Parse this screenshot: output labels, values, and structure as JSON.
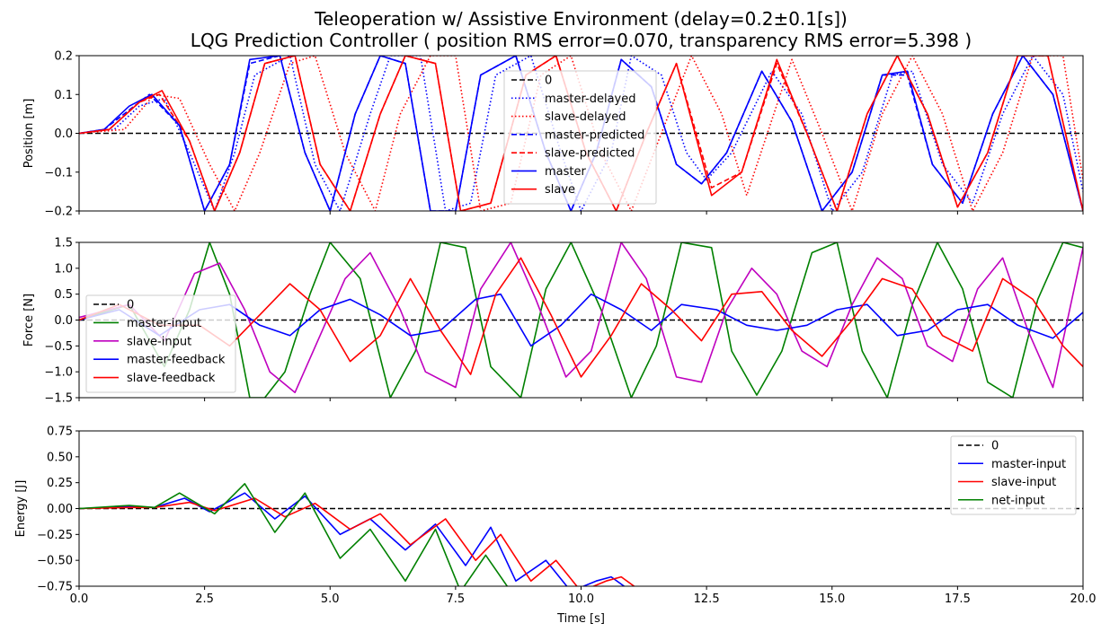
{
  "figure": {
    "title_line1": "Teleoperation w/ Assistive Environment (delay=0.2±0.1[s])",
    "title_line2": "LQG Prediction Controller ( position RMS error=0.070, transparency RMS error=5.398 )"
  },
  "chart_data": [
    {
      "type": "line",
      "ylabel": "Position [m]",
      "xlim": [
        0,
        20
      ],
      "ylim": [
        -0.2,
        0.2
      ],
      "yticks": [
        "0.2",
        "0.1",
        "0.0",
        "−0.1",
        "−0.2"
      ],
      "ytick_values": [
        0.2,
        0.1,
        0.0,
        -0.1,
        -0.2
      ],
      "legend_position": "top-center",
      "series": [
        {
          "name": "0",
          "color": "#000000",
          "style": "dashed",
          "x": [
            0,
            20
          ],
          "y": [
            0,
            0
          ]
        },
        {
          "name": "master-delayed",
          "color": "#0000ff",
          "style": "dotted",
          "x": [
            0,
            0.7,
            1.2,
            1.7,
            2.2,
            2.7,
            3.1,
            3.5,
            4.2,
            4.7,
            5.2,
            5.8,
            6.2,
            6.8,
            7.3,
            7.8,
            8.3,
            9.0,
            9.6,
            10.0,
            10.6,
            11.0,
            11.6,
            12.1,
            12.5,
            13.0,
            13.8,
            14.4,
            15.0,
            15.6,
            16.2,
            16.6,
            17.2,
            17.8,
            18.4,
            19.0,
            19.6,
            20.0
          ],
          "y": [
            0,
            0.01,
            0.07,
            0.09,
            -0.05,
            -0.2,
            -0.05,
            0.15,
            0.2,
            -0.08,
            -0.2,
            0.05,
            0.2,
            0.2,
            -0.2,
            -0.18,
            0.15,
            0.2,
            -0.05,
            -0.2,
            -0.05,
            0.2,
            0.15,
            -0.05,
            -0.12,
            -0.05,
            0.16,
            0.05,
            -0.2,
            -0.1,
            0.15,
            0.16,
            -0.08,
            -0.18,
            0.05,
            0.2,
            0.1,
            -0.15
          ]
        },
        {
          "name": "slave-delayed",
          "color": "#ff0000",
          "style": "dotted",
          "x": [
            0,
            0.9,
            1.5,
            2.0,
            2.6,
            3.1,
            3.6,
            4.2,
            4.7,
            5.3,
            5.9,
            6.4,
            7.0,
            7.5,
            8.0,
            8.6,
            9.2,
            9.8,
            10.4,
            11.0,
            11.6,
            12.2,
            12.8,
            13.3,
            14.2,
            14.8,
            15.4,
            16.0,
            16.6,
            17.2,
            17.8,
            18.4,
            19.0,
            19.6,
            20.0
          ],
          "y": [
            0,
            0.01,
            0.1,
            0.09,
            -0.08,
            -0.2,
            -0.05,
            0.18,
            0.2,
            -0.05,
            -0.2,
            0.05,
            0.2,
            0.2,
            -0.2,
            -0.18,
            0.15,
            0.2,
            -0.05,
            -0.2,
            0.0,
            0.2,
            0.05,
            -0.16,
            0.19,
            0.0,
            -0.2,
            0.05,
            0.2,
            0.05,
            -0.2,
            -0.05,
            0.2,
            0.2,
            -0.12
          ]
        },
        {
          "name": "master-predicted",
          "color": "#0000ff",
          "style": "dashed",
          "x": [
            0,
            0.5,
            1.0,
            1.4,
            2.0,
            2.5,
            3.0,
            3.4,
            4.0,
            4.5,
            5.0,
            5.5,
            6.0,
            6.5,
            7.0,
            7.5,
            8.0,
            8.7,
            9.3,
            9.8,
            10.3,
            10.8,
            11.4,
            11.9,
            12.4,
            12.9,
            13.6,
            14.2,
            14.8,
            15.4,
            16.0,
            16.5,
            17.0,
            17.6,
            18.2,
            18.8,
            19.4,
            20.0
          ],
          "y": [
            0,
            0.01,
            0.06,
            0.1,
            0.02,
            -0.2,
            -0.08,
            0.18,
            0.2,
            -0.05,
            -0.2,
            0.05,
            0.2,
            0.18,
            -0.2,
            -0.2,
            0.15,
            0.2,
            -0.05,
            -0.2,
            -0.05,
            0.19,
            0.12,
            -0.08,
            -0.13,
            -0.05,
            0.16,
            0.03,
            -0.2,
            -0.1,
            0.15,
            0.15,
            -0.08,
            -0.18,
            0.05,
            0.2,
            0.1,
            -0.2
          ]
        },
        {
          "name": "slave-predicted",
          "color": "#ff0000",
          "style": "dashed",
          "x": [
            0,
            0.6,
            1.2,
            1.6,
            2.2,
            2.7,
            3.2,
            3.7,
            4.3,
            4.8,
            5.4,
            6.0,
            6.5,
            7.1,
            7.6,
            8.2,
            8.9,
            9.5,
            10.1,
            10.7,
            11.3,
            11.9,
            12.6,
            13.2,
            13.9,
            14.5,
            15.1,
            15.7,
            16.3,
            16.9,
            17.5,
            18.1,
            18.7,
            19.3,
            20.0
          ],
          "y": [
            0,
            0.01,
            0.08,
            0.1,
            -0.02,
            -0.2,
            -0.05,
            0.18,
            0.2,
            -0.08,
            -0.2,
            0.05,
            0.2,
            0.18,
            -0.2,
            -0.18,
            0.15,
            0.2,
            -0.05,
            -0.2,
            0.0,
            0.18,
            -0.14,
            -0.1,
            0.18,
            0.0,
            -0.2,
            0.05,
            0.2,
            0.05,
            -0.19,
            -0.05,
            0.2,
            0.2,
            -0.2
          ]
        },
        {
          "name": "master",
          "color": "#0000ff",
          "style": "solid",
          "x": [
            0,
            0.5,
            1.0,
            1.45,
            2.0,
            2.5,
            3.0,
            3.4,
            4.0,
            4.5,
            5.0,
            5.5,
            6.0,
            6.5,
            7.0,
            7.5,
            8.0,
            8.7,
            9.3,
            9.8,
            10.3,
            10.8,
            11.4,
            11.9,
            12.4,
            12.9,
            13.6,
            14.2,
            14.8,
            15.4,
            16.0,
            16.5,
            17.0,
            17.6,
            18.2,
            18.8,
            19.4,
            20.0
          ],
          "y": [
            0,
            0.01,
            0.07,
            0.1,
            0.02,
            -0.2,
            -0.08,
            0.19,
            0.2,
            -0.05,
            -0.2,
            0.05,
            0.2,
            0.18,
            -0.2,
            -0.2,
            0.15,
            0.2,
            -0.05,
            -0.2,
            -0.05,
            0.19,
            0.12,
            -0.08,
            -0.13,
            -0.05,
            0.16,
            0.03,
            -0.2,
            -0.1,
            0.15,
            0.16,
            -0.08,
            -0.18,
            0.05,
            0.2,
            0.1,
            -0.2
          ]
        },
        {
          "name": "slave",
          "color": "#ff0000",
          "style": "solid",
          "x": [
            0,
            0.6,
            1.2,
            1.65,
            2.2,
            2.7,
            3.2,
            3.7,
            4.3,
            4.8,
            5.4,
            6.0,
            6.5,
            7.1,
            7.6,
            8.2,
            8.9,
            9.5,
            10.1,
            10.7,
            11.3,
            11.9,
            12.6,
            13.2,
            13.9,
            14.5,
            15.1,
            15.7,
            16.3,
            16.9,
            17.5,
            18.1,
            18.7,
            19.3,
            20.0
          ],
          "y": [
            0,
            0.01,
            0.08,
            0.11,
            -0.02,
            -0.2,
            -0.05,
            0.18,
            0.2,
            -0.08,
            -0.2,
            0.05,
            0.2,
            0.18,
            -0.2,
            -0.18,
            0.15,
            0.2,
            -0.05,
            -0.2,
            0.0,
            0.18,
            -0.16,
            -0.1,
            0.19,
            0.0,
            -0.2,
            0.05,
            0.2,
            0.05,
            -0.19,
            -0.05,
            0.2,
            0.2,
            -0.2
          ]
        }
      ]
    },
    {
      "type": "line",
      "ylabel": "Force [N]",
      "xlim": [
        0,
        20
      ],
      "ylim": [
        -1.5,
        1.5
      ],
      "yticks": [
        "1.5",
        "1.0",
        "0.5",
        "0.0",
        "−0.5",
        "−1.0",
        "−1.5"
      ],
      "ytick_values": [
        1.5,
        1.0,
        0.5,
        0.0,
        -0.5,
        -1.0,
        -1.5
      ],
      "legend_position": "center-left",
      "series": [
        {
          "name": "0",
          "color": "#000000",
          "style": "dashed",
          "x": [
            0,
            20
          ],
          "y": [
            0,
            0
          ]
        },
        {
          "name": "master-input",
          "color": "#008000",
          "style": "solid",
          "x": [
            0,
            1.0,
            1.7,
            2.2,
            2.6,
            3.0,
            3.4,
            3.7,
            4.1,
            4.6,
            5.0,
            5.6,
            6.2,
            6.7,
            7.2,
            7.7,
            8.2,
            8.8,
            9.3,
            9.8,
            10.4,
            11.0,
            11.5,
            12.0,
            12.6,
            13.0,
            13.5,
            14.0,
            14.6,
            15.1,
            15.6,
            16.1,
            16.6,
            17.1,
            17.6,
            18.1,
            18.6,
            19.1,
            19.6,
            20.0
          ],
          "y": [
            0,
            0.3,
            -0.9,
            0.2,
            1.5,
            0.5,
            -1.5,
            -1.5,
            -1.0,
            0.5,
            1.5,
            0.8,
            -1.5,
            -0.6,
            1.5,
            1.4,
            -0.9,
            -1.5,
            0.6,
            1.5,
            0.2,
            -1.5,
            -0.5,
            1.5,
            1.4,
            -0.6,
            -1.45,
            -0.6,
            1.3,
            1.5,
            -0.6,
            -1.5,
            0.3,
            1.5,
            0.6,
            -1.2,
            -1.5,
            0.4,
            1.5,
            1.4
          ]
        },
        {
          "name": "slave-input",
          "color": "#bf00bf",
          "style": "solid",
          "x": [
            0,
            1.0,
            1.7,
            2.3,
            2.8,
            3.3,
            3.8,
            4.3,
            4.8,
            5.3,
            5.8,
            6.4,
            6.9,
            7.5,
            8.0,
            8.6,
            9.1,
            9.7,
            10.2,
            10.8,
            11.3,
            11.9,
            12.4,
            12.9,
            13.4,
            13.9,
            14.4,
            14.9,
            15.4,
            15.9,
            16.4,
            16.9,
            17.4,
            17.9,
            18.4,
            18.9,
            19.4,
            20.0
          ],
          "y": [
            0.05,
            0.3,
            -0.4,
            0.9,
            1.1,
            0.2,
            -1.0,
            -1.4,
            -0.3,
            0.8,
            1.3,
            0.2,
            -1.0,
            -1.3,
            0.6,
            1.5,
            0.4,
            -1.1,
            -0.6,
            1.5,
            0.8,
            -1.1,
            -1.2,
            0.2,
            1.0,
            0.5,
            -0.6,
            -0.9,
            0.3,
            1.2,
            0.8,
            -0.5,
            -0.8,
            0.6,
            1.2,
            -0.2,
            -1.3,
            1.4
          ]
        },
        {
          "name": "master-feedback",
          "color": "#0000ff",
          "style": "solid",
          "x": [
            0,
            0.8,
            1.6,
            2.4,
            3.0,
            3.6,
            4.2,
            4.8,
            5.4,
            6.0,
            6.6,
            7.2,
            7.9,
            8.4,
            9.0,
            9.6,
            10.2,
            10.8,
            11.4,
            12.0,
            12.7,
            13.3,
            13.9,
            14.5,
            15.1,
            15.7,
            16.3,
            16.9,
            17.5,
            18.1,
            18.7,
            19.4,
            20.0
          ],
          "y": [
            0.0,
            0.2,
            -0.3,
            0.2,
            0.3,
            -0.1,
            -0.3,
            0.2,
            0.4,
            0.1,
            -0.3,
            -0.2,
            0.4,
            0.5,
            -0.5,
            -0.1,
            0.5,
            0.2,
            -0.2,
            0.3,
            0.2,
            -0.1,
            -0.2,
            -0.1,
            0.2,
            0.3,
            -0.3,
            -0.2,
            0.2,
            0.3,
            -0.1,
            -0.35,
            0.15
          ]
        },
        {
          "name": "slave-feedback",
          "color": "#ff0000",
          "style": "solid",
          "x": [
            0,
            0.8,
            1.6,
            2.4,
            3.0,
            3.6,
            4.2,
            4.8,
            5.4,
            6.0,
            6.6,
            7.2,
            7.8,
            8.3,
            8.8,
            9.4,
            10.0,
            10.6,
            11.2,
            11.8,
            12.4,
            13.0,
            13.6,
            14.2,
            14.8,
            15.4,
            16.0,
            16.6,
            17.2,
            17.8,
            18.4,
            19.0,
            19.6,
            20.0
          ],
          "y": [
            0.0,
            0.3,
            -0.1,
            -0.1,
            -0.5,
            0.1,
            0.7,
            0.2,
            -0.8,
            -0.3,
            0.8,
            -0.2,
            -1.05,
            0.5,
            1.2,
            0.1,
            -1.1,
            -0.3,
            0.7,
            0.2,
            -0.4,
            0.5,
            0.55,
            -0.2,
            -0.7,
            0.0,
            0.8,
            0.6,
            -0.3,
            -0.6,
            0.8,
            0.4,
            -0.5,
            -0.9
          ]
        }
      ]
    },
    {
      "type": "line",
      "ylabel": "Energy [J]",
      "xlabel": "Time [s]",
      "xlim": [
        0,
        20
      ],
      "ylim": [
        -0.75,
        0.75
      ],
      "xticks": [
        "0.0",
        "2.5",
        "5.0",
        "7.5",
        "10.0",
        "12.5",
        "15.0",
        "17.5",
        "20.0"
      ],
      "xtick_values": [
        0,
        2.5,
        5,
        7.5,
        10,
        12.5,
        15,
        17.5,
        20
      ],
      "yticks": [
        "0.75",
        "0.50",
        "0.25",
        "0.00",
        "−0.25",
        "−0.50",
        "−0.75"
      ],
      "ytick_values": [
        0.75,
        0.5,
        0.25,
        0.0,
        -0.25,
        -0.5,
        -0.75
      ],
      "legend_position": "top-right",
      "series": [
        {
          "name": "0",
          "color": "#000000",
          "style": "dashed",
          "x": [
            0,
            20
          ],
          "y": [
            0,
            0
          ]
        },
        {
          "name": "master-input",
          "color": "#0000ff",
          "style": "solid",
          "x": [
            0,
            1.0,
            1.5,
            2.1,
            2.6,
            3.3,
            3.9,
            4.5,
            5.2,
            5.8,
            6.5,
            7.1,
            7.7,
            8.2,
            8.7,
            9.3,
            9.8,
            10.3,
            10.6,
            11.0
          ],
          "y": [
            0,
            0.02,
            0.01,
            0.1,
            -0.03,
            0.15,
            -0.1,
            0.12,
            -0.25,
            -0.1,
            -0.4,
            -0.15,
            -0.55,
            -0.18,
            -0.7,
            -0.5,
            -0.8,
            -0.7,
            -0.66,
            -0.8
          ]
        },
        {
          "name": "slave-input",
          "color": "#ff0000",
          "style": "solid",
          "x": [
            0,
            1.0,
            1.5,
            2.2,
            2.7,
            3.5,
            4.1,
            4.7,
            5.4,
            6.0,
            6.6,
            7.3,
            7.9,
            8.4,
            9.0,
            9.5,
            10.0,
            10.5,
            10.8,
            11.2
          ],
          "y": [
            0,
            0.01,
            0.01,
            0.06,
            -0.02,
            0.1,
            -0.08,
            0.05,
            -0.2,
            -0.05,
            -0.35,
            -0.1,
            -0.5,
            -0.25,
            -0.7,
            -0.5,
            -0.8,
            -0.7,
            -0.66,
            -0.8
          ]
        },
        {
          "name": "net-input",
          "color": "#008000",
          "style": "solid",
          "x": [
            0,
            1.0,
            1.5,
            2.0,
            2.7,
            3.3,
            3.9,
            4.5,
            5.2,
            5.8,
            6.5,
            7.1,
            7.6,
            8.1,
            8.6,
            9.0
          ],
          "y": [
            0,
            0.03,
            0.01,
            0.15,
            -0.05,
            0.24,
            -0.23,
            0.15,
            -0.48,
            -0.2,
            -0.7,
            -0.2,
            -0.8,
            -0.45,
            -0.8,
            -0.85
          ]
        }
      ]
    }
  ]
}
